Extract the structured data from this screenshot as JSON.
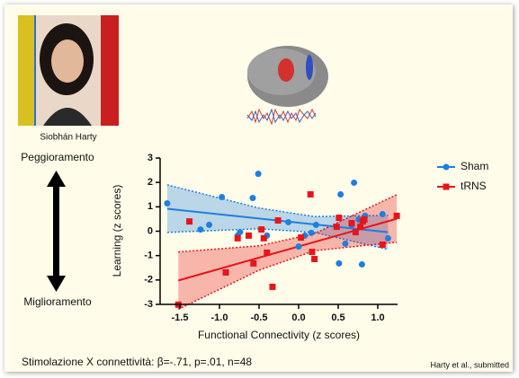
{
  "slide": {
    "person": "Siobhán Harty",
    "top_label": "Peggioramento",
    "bottom_label": "Miglioramento",
    "caption": "Stimolazione X connettività: β=-.71, p=.01, n=48",
    "citation": "Harty et al., submitted"
  },
  "chart_data": {
    "type": "scatter",
    "x_label": "Functional Connectivity (z scores)",
    "y_label": "Learning (z scores)",
    "xlim": [
      -1.75,
      1.25
    ],
    "ylim": [
      -3,
      3
    ],
    "xticks": [
      -1.5,
      {
        "value": -1,
        "label": "-1.0"
      },
      -0.5,
      {
        "value": 0,
        "label": "0.0"
      },
      0.5,
      {
        "value": 1,
        "label": "1.0"
      }
    ],
    "yticks": [
      -3,
      -2,
      -1,
      0,
      1,
      2,
      3
    ],
    "legend": "upper right",
    "series": [
      {
        "name": "Sham",
        "color": "#1e7fe0",
        "marker": "circle",
        "x": [
          -1.66,
          -1.24,
          -1.13,
          -0.97,
          -0.77,
          -0.74,
          -0.58,
          -0.51,
          -0.4,
          -0.13,
          0,
          0.08,
          0.16,
          0.22,
          0.53,
          0.51,
          0.59,
          0.7,
          0.67,
          0.76,
          0.8,
          0.84,
          1.06,
          1.13
        ],
        "values": [
          1.14,
          0.07,
          0.26,
          1.4,
          -0.18,
          -0.04,
          1.36,
          2.35,
          -0.18,
          0.37,
          -0.63,
          -0.18,
          -0.07,
          0.26,
          1.51,
          -1.32,
          -0.51,
          1.99,
          0.26,
          0.48,
          -1.36,
          0.63,
          0.7,
          -0.29
        ],
        "fit": {
          "x": [
            -1.66,
            1.13
          ],
          "y": [
            0.92,
            -0.04
          ]
        },
        "band": {
          "x": [
            -1.66,
            -0.5,
            0.2,
            1.13
          ],
          "lower": [
            -0.05,
            0.1,
            -0.05,
            -0.75
          ],
          "upper": [
            1.9,
            0.95,
            0.6,
            0.65
          ]
        }
      },
      {
        "name": "tRNS",
        "color": "#e8141b",
        "marker": "square",
        "x": [
          -1.52,
          -1.38,
          -0.92,
          -0.77,
          -0.63,
          -0.57,
          -0.47,
          -0.44,
          -0.4,
          -0.26,
          -0.33,
          0.03,
          0.15,
          0.17,
          0.2,
          0.51,
          0.48,
          0.67,
          0.72,
          0.78,
          0.81,
          0.83,
          1.06,
          1.24
        ],
        "values": [
          -3.01,
          0.4,
          -1.69,
          -0.29,
          -0.18,
          -1.32,
          0.07,
          -0.29,
          -0.88,
          0.44,
          -2.28,
          -0.26,
          1.51,
          -0.85,
          -1.14,
          0.55,
          0.18,
          0.33,
          -0.04,
          0.18,
          0.4,
          0.48,
          -0.55,
          0.63
        ],
        "fit": {
          "x": [
            -1.52,
            1.24
          ],
          "y": [
            -2.02,
            0.51
          ]
        },
        "band": {
          "x": [
            -1.52,
            -0.5,
            0.2,
            1.24
          ],
          "lower": [
            -3.2,
            -1.6,
            -0.8,
            -0.45
          ],
          "upper": [
            -0.85,
            -0.6,
            -0.1,
            1.5
          ]
        }
      }
    ]
  }
}
